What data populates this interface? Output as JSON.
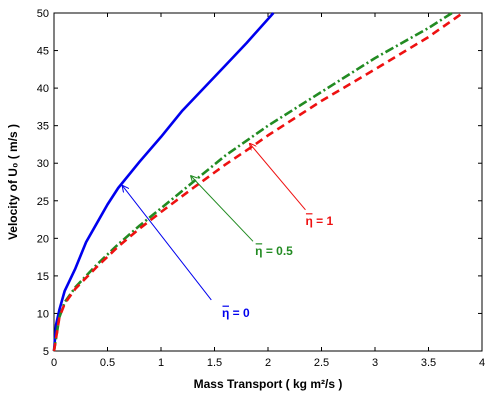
{
  "chart_data": {
    "type": "line",
    "xlabel": "Mass Transport ( kg m²/s )",
    "ylabel": "Velocity of U₀ ( m/s )",
    "xlim": [
      0,
      4
    ],
    "ylim": [
      5,
      50
    ],
    "xticks": [
      0,
      0.5,
      1,
      1.5,
      2,
      2.5,
      3,
      3.5,
      4
    ],
    "xtick_labels": [
      "0",
      "0.5",
      "1",
      "1.5",
      "2",
      "2.5",
      "3",
      "3.5",
      "4"
    ],
    "yticks": [
      5,
      10,
      15,
      20,
      25,
      30,
      35,
      40,
      45,
      50
    ],
    "ytick_labels": [
      "5",
      "10",
      "15",
      "20",
      "25",
      "30",
      "35",
      "40",
      "45",
      "50"
    ],
    "grid": false,
    "series": [
      {
        "name": "η̅ = 0",
        "color": "#0000ee",
        "style": "solid",
        "x": [
          0,
          0.02,
          0.05,
          0.1,
          0.2,
          0.3,
          0.4,
          0.5,
          0.6,
          0.8,
          1.0,
          1.2,
          1.4,
          1.6,
          1.8,
          2.05
        ],
        "y": [
          5,
          8.5,
          10.5,
          13,
          16,
          19.5,
          22,
          24.5,
          26.7,
          30.2,
          33.5,
          37,
          40,
          43,
          46,
          50
        ]
      },
      {
        "name": "η̅ = 0.5",
        "color": "#228b22",
        "style": "dashdot",
        "x": [
          0,
          0.05,
          0.1,
          0.2,
          0.4,
          0.6,
          0.8,
          1.0,
          1.3,
          1.6,
          2.0,
          2.5,
          3.0,
          3.5,
          3.72
        ],
        "y": [
          5,
          9.5,
          11.5,
          13.5,
          16.5,
          19.2,
          21.7,
          24,
          27.5,
          31,
          35,
          39.5,
          44,
          48,
          50
        ]
      },
      {
        "name": "η̅ = 1",
        "color": "#ee1111",
        "style": "dashed",
        "x": [
          0,
          0.05,
          0.1,
          0.2,
          0.4,
          0.6,
          0.8,
          1.0,
          1.3,
          1.6,
          1.85,
          2.0,
          2.5,
          3.0,
          3.5,
          3.82
        ],
        "y": [
          5,
          9.5,
          11.3,
          13.3,
          16.2,
          18.9,
          21.3,
          23.5,
          26.7,
          29.8,
          32.2,
          33.7,
          38.3,
          42.5,
          46.8,
          50
        ]
      }
    ],
    "annotations": [
      {
        "text": "η = 0",
        "over": "η",
        "color": "#0000ee",
        "label_at": [
          1.57,
          9.5
        ],
        "arrow_from": [
          1.47,
          11.8
        ],
        "arrow_to": [
          0.64,
          27
        ]
      },
      {
        "text": "η = 0.5",
        "over": "η",
        "color": "#228b22",
        "label_at": [
          1.88,
          17.8
        ],
        "arrow_from": [
          1.86,
          19.6
        ],
        "arrow_to": [
          1.28,
          28.3
        ]
      },
      {
        "text": "η = 1",
        "over": "η",
        "color": "#ee1111",
        "label_at": [
          2.35,
          21.8
        ],
        "arrow_from": [
          2.35,
          23.8
        ],
        "arrow_to": [
          1.83,
          32.6
        ]
      }
    ]
  }
}
